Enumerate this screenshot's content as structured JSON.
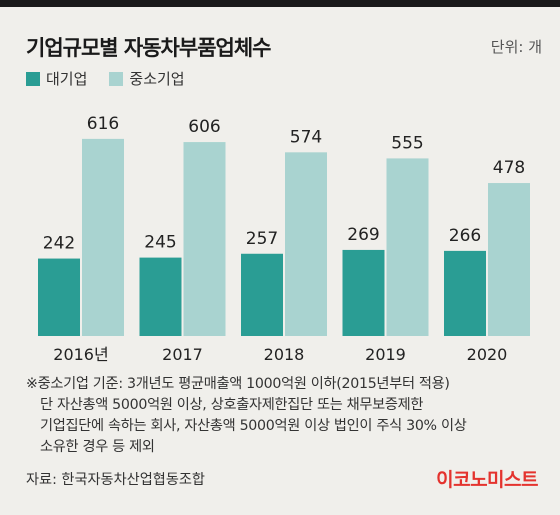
{
  "title": "기업규모별 자동차부품업체수",
  "unit": "단위: 개",
  "chart_data": {
    "type": "bar",
    "categories": [
      "2016년",
      "2017",
      "2018",
      "2019",
      "2020"
    ],
    "series": [
      {
        "name": "대기업",
        "values": [
          242,
          245,
          257,
          269,
          266
        ],
        "color": "#2a9d94"
      },
      {
        "name": "중소기업",
        "values": [
          616,
          606,
          574,
          555,
          478
        ],
        "color": "#a9d3d0"
      }
    ],
    "title": "기업규모별 자동차부품업체수",
    "ylabel": "",
    "xlabel": "",
    "ylim": [
      0,
      650
    ],
    "grid": false,
    "legend": "top-left"
  },
  "notes": [
    "※중소기업 기준: 3개년도 평균매출액 1000억원 이하(2015년부터 적용)",
    "단 자산총액 5000억원 이상, 상호출자제한집단 또는 채무보증제한",
    "기업집단에 속하는 회사, 자산총액 5000억원 이상 법인이 주식 30% 이상",
    "소유한 경우 등 제외"
  ],
  "source": "자료: 한국자동차산업협동조합",
  "logo": "이코노미스트"
}
